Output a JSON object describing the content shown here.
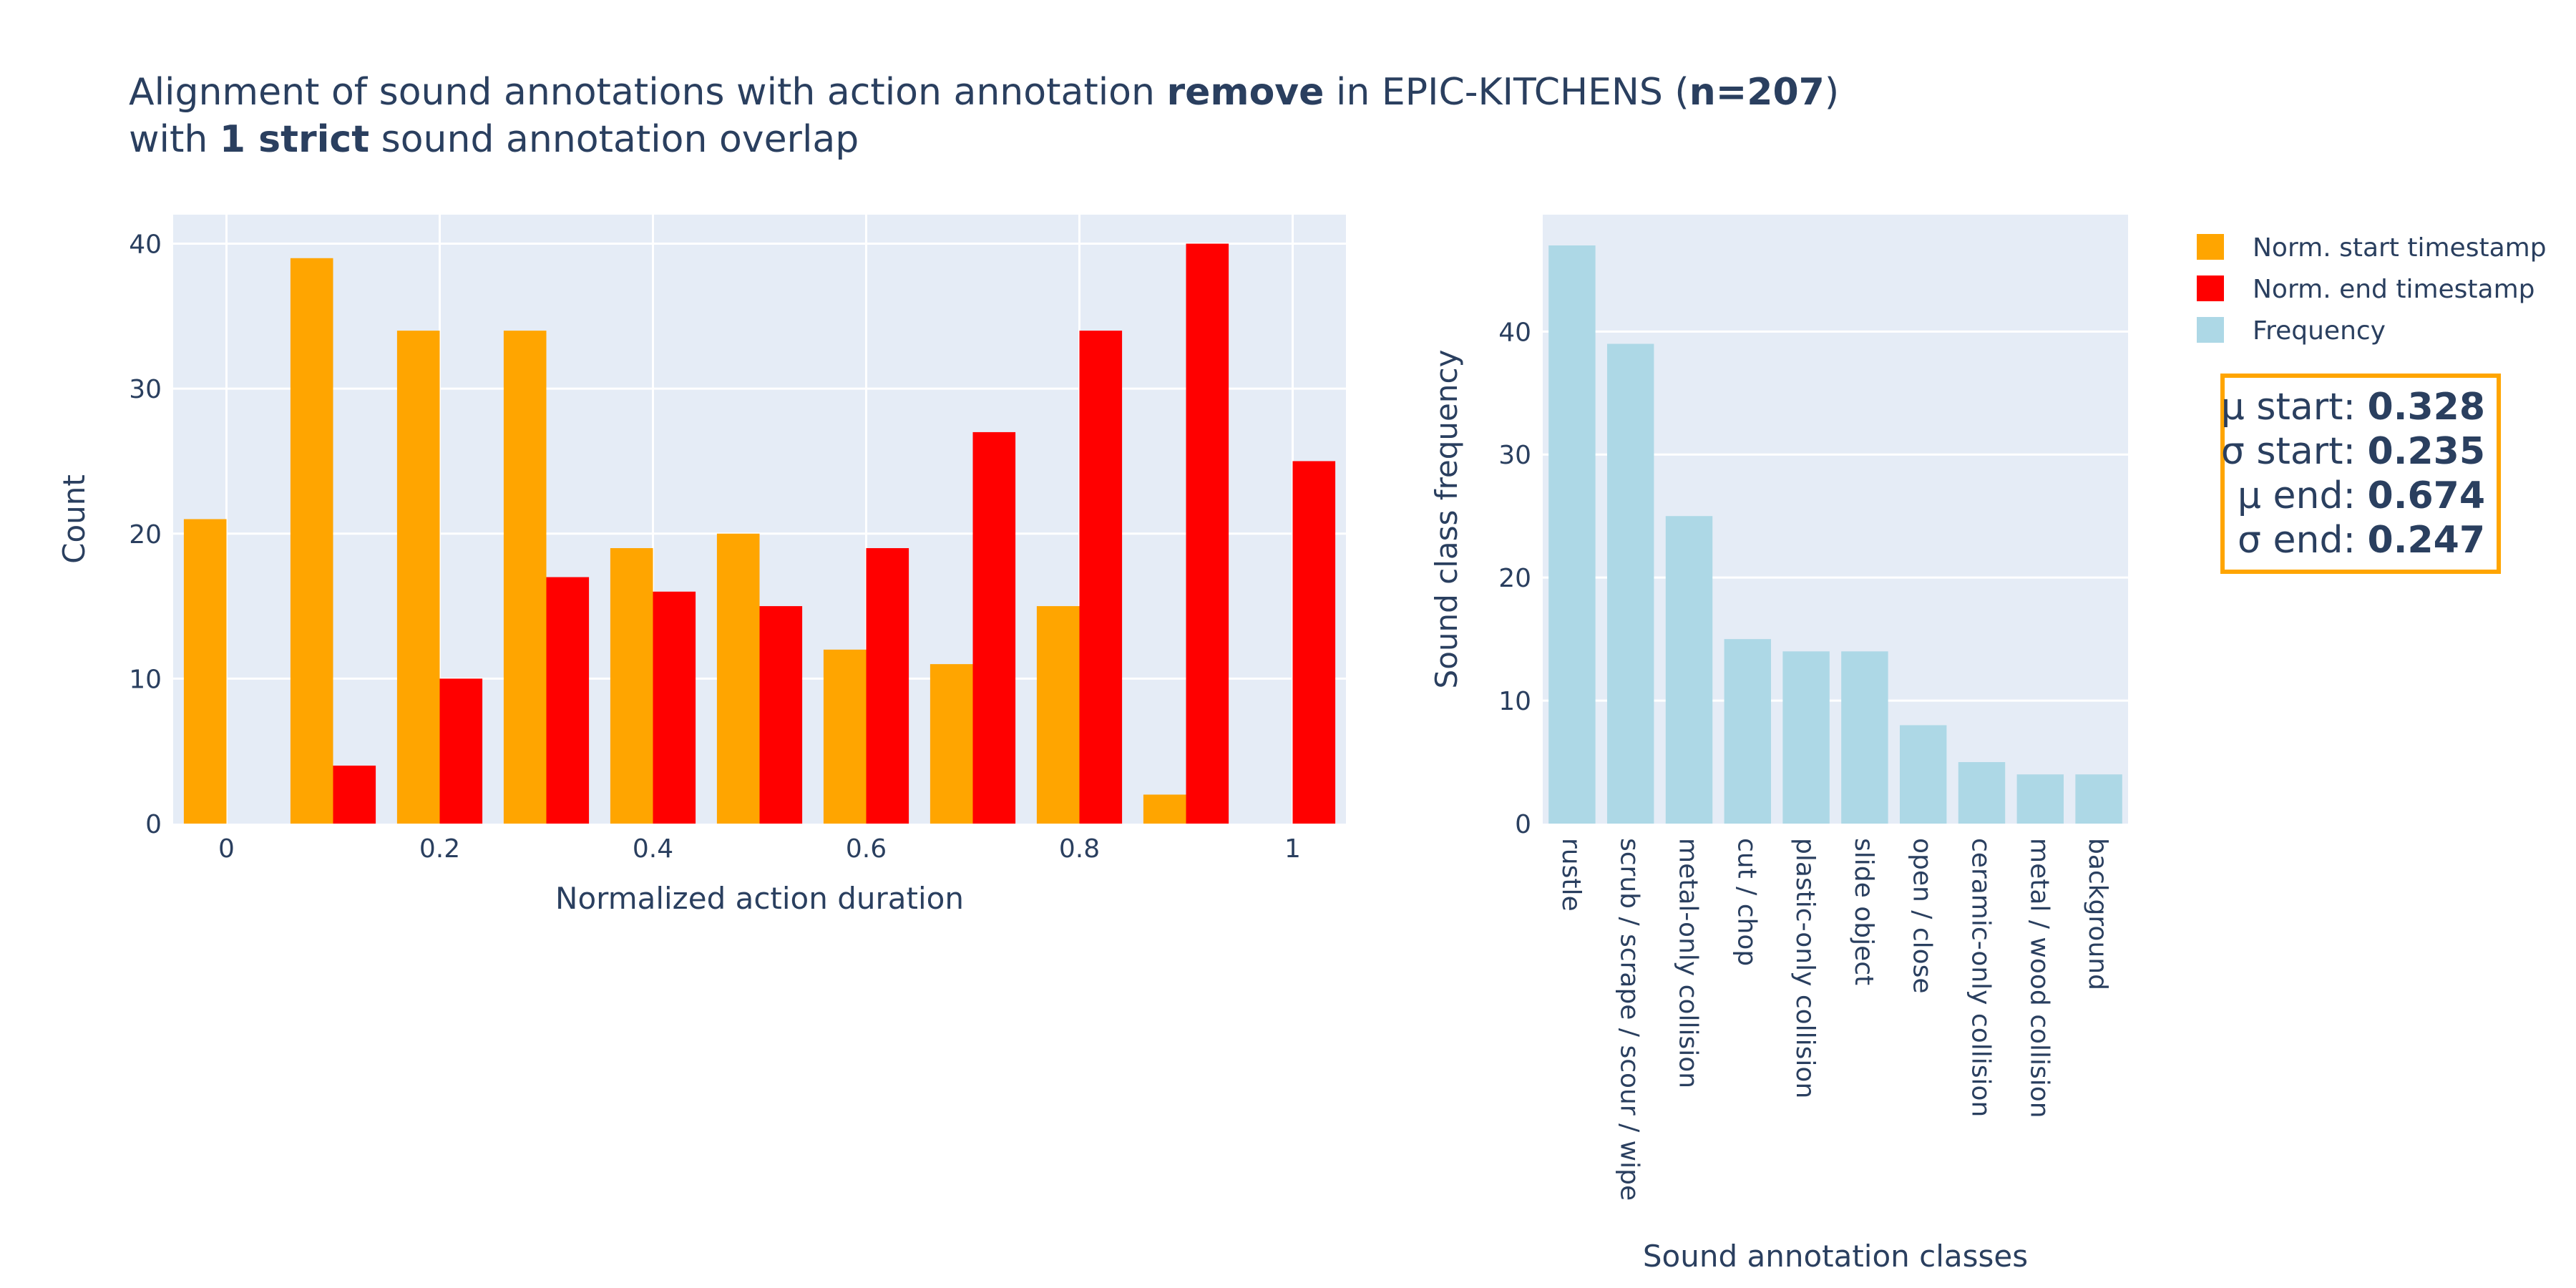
{
  "title": {
    "line1_prefix": "Alignment of sound annotations with action annotation ",
    "line1_bold1": "remove",
    "line1_middle": " in EPIC-KITCHENS (",
    "line1_bold2": "n=207",
    "line1_suffix": ")",
    "line2_prefix": "with ",
    "line2_bold": "1 strict",
    "line2_suffix": " sound annotation overlap"
  },
  "legend": [
    {
      "label": "Norm. start timestamp",
      "color": "#ffa500"
    },
    {
      "label": "Norm. end timestamp",
      "color": "#ff0000"
    },
    {
      "label": "Frequency",
      "color": "#add8e6"
    }
  ],
  "stats": {
    "mu_start_label": "μ start: ",
    "mu_start_value": "0.328",
    "sigma_start_label": "σ start: ",
    "sigma_start_value": "0.235",
    "mu_end_label": "μ end: ",
    "mu_end_value": "0.674",
    "sigma_end_label": "σ end: ",
    "sigma_end_value": "0.247"
  },
  "chart_data": [
    {
      "type": "bar",
      "xlabel": "Normalized action duration",
      "ylabel": "Count",
      "x": [
        0,
        0.1,
        0.2,
        0.3,
        0.4,
        0.5,
        0.6,
        0.7,
        0.8,
        0.9,
        1.0
      ],
      "xlim": [
        -0.05,
        1.05
      ],
      "ylim": [
        0,
        42
      ],
      "xticks": [
        0,
        0.2,
        0.4,
        0.6,
        0.8,
        1.0
      ],
      "xtick_labels": [
        "0",
        "0.2",
        "0.4",
        "0.6",
        "0.8",
        "1"
      ],
      "yticks": [
        0,
        10,
        20,
        30,
        40
      ],
      "series": [
        {
          "name": "Norm. start timestamp",
          "color": "#ffa500",
          "values": [
            21,
            39,
            34,
            34,
            19,
            20,
            12,
            11,
            15,
            2,
            0
          ]
        },
        {
          "name": "Norm. end timestamp",
          "color": "#ff0000",
          "values": [
            0,
            4,
            10,
            17,
            16,
            15,
            19,
            27,
            34,
            40,
            25
          ]
        }
      ],
      "grid": true
    },
    {
      "type": "bar",
      "xlabel": "Sound annotation classes",
      "ylabel": "Sound class frequency",
      "categories": [
        "rustle",
        "scrub / scrape / scour / wipe",
        "metal-only collision",
        "cut / chop",
        "plastic-only collision",
        "slide object",
        "open / close",
        "ceramic-only collision",
        "metal / wood collision",
        "background"
      ],
      "series": [
        {
          "name": "Frequency",
          "color": "#add8e6",
          "values": [
            47,
            39,
            25,
            15,
            14,
            14,
            8,
            5,
            4,
            4
          ]
        }
      ],
      "ylim": [
        0,
        49.5
      ],
      "yticks": [
        0,
        10,
        20,
        30,
        40
      ],
      "grid": true
    }
  ]
}
